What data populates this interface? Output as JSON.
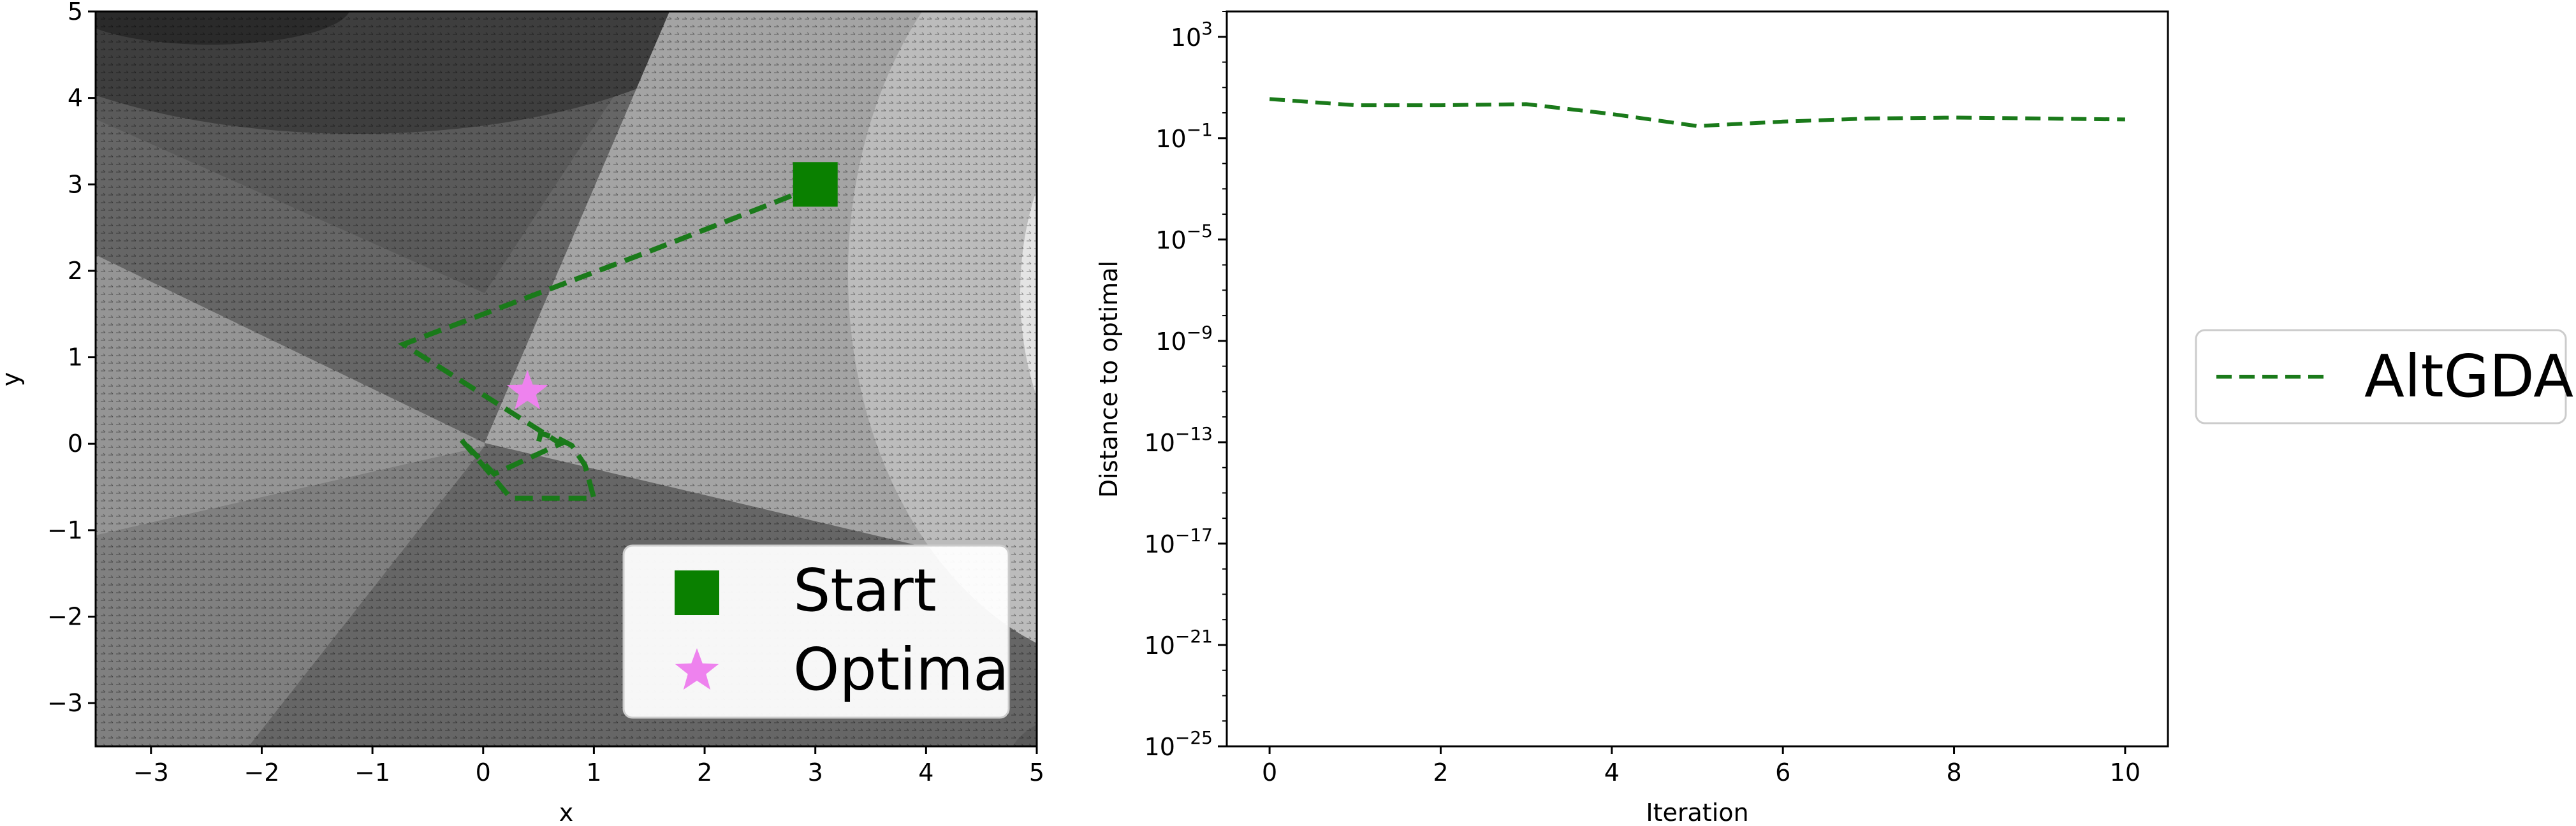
{
  "chart_data": [
    {
      "type": "scatter",
      "title": "",
      "xlabel": "x",
      "ylabel": "y",
      "xlim": [
        -3.5,
        5
      ],
      "ylim": [
        -3.5,
        5
      ],
      "xticks": [
        -3,
        -2,
        -1,
        0,
        1,
        2,
        3,
        4,
        5
      ],
      "yticks": [
        -3,
        -2,
        -1,
        0,
        1,
        2,
        3,
        4,
        5
      ],
      "xtick_labels": [
        "−3",
        "−2",
        "−1",
        "0",
        "1",
        "2",
        "3",
        "4",
        "5"
      ],
      "ytick_labels": [
        "−3",
        "−2",
        "−1",
        "0",
        "1",
        "2",
        "3",
        "4",
        "5"
      ],
      "background": "grayscale filled contour regions with a dense gradient quiver field",
      "trajectory": {
        "style": "dashed",
        "color": "#1a7a1a",
        "x": [
          3.0,
          2.75,
          2.55,
          1.45,
          -0.72,
          0.7,
          0.1,
          -0.2,
          0.25,
          1.0,
          0.92,
          0.8,
          0.68,
          0.52,
          0.5
        ],
        "y": [
          3.0,
          2.85,
          2.75,
          2.2,
          1.15,
          0.0,
          -0.35,
          0.05,
          -0.63,
          -0.63,
          -0.25,
          -0.02,
          0.06,
          0.12,
          0.02
        ]
      },
      "markers": [
        {
          "name": "Start",
          "x": 3.0,
          "y": 3.0,
          "shape": "square",
          "color": "#0a8000"
        },
        {
          "name": "Optima",
          "x": 0.4,
          "y": 0.6,
          "shape": "star",
          "color": "#ee82ee"
        }
      ],
      "legend": {
        "position": "lower-right",
        "entries": [
          "Start",
          "Optima"
        ]
      }
    },
    {
      "type": "line",
      "title": "",
      "xlabel": "Iteration",
      "ylabel": "Distance to optimal",
      "xlim": [
        -0.5,
        10.5
      ],
      "ylim_log10": [
        -25,
        4
      ],
      "y_scale": "log",
      "xticks": [
        0,
        2,
        4,
        6,
        8,
        10
      ],
      "xtick_labels": [
        "0",
        "2",
        "4",
        "6",
        "8",
        "10"
      ],
      "yticks_log10": [
        3,
        -1,
        -5,
        -9,
        -13,
        -17,
        -21,
        -25
      ],
      "ytick_bases": [
        "10",
        "10",
        "10",
        "10",
        "10",
        "10",
        "10",
        "10"
      ],
      "ytick_exponents": [
        "3",
        "−1",
        "−5",
        "−9",
        "−13",
        "−17",
        "−21",
        "−25"
      ],
      "series": [
        {
          "name": "AltGDA",
          "style": "dashed",
          "color": "#1a7a1a",
          "x": [
            0,
            1,
            2,
            3,
            4,
            5,
            6,
            7,
            8,
            9,
            10
          ],
          "y": [
            3.5,
            2.0,
            2.0,
            2.2,
            0.9,
            0.3,
            0.45,
            0.6,
            0.65,
            0.6,
            0.55
          ]
        }
      ],
      "legend": {
        "position": "outside-right",
        "entries": [
          "AltGDA"
        ]
      }
    }
  ]
}
